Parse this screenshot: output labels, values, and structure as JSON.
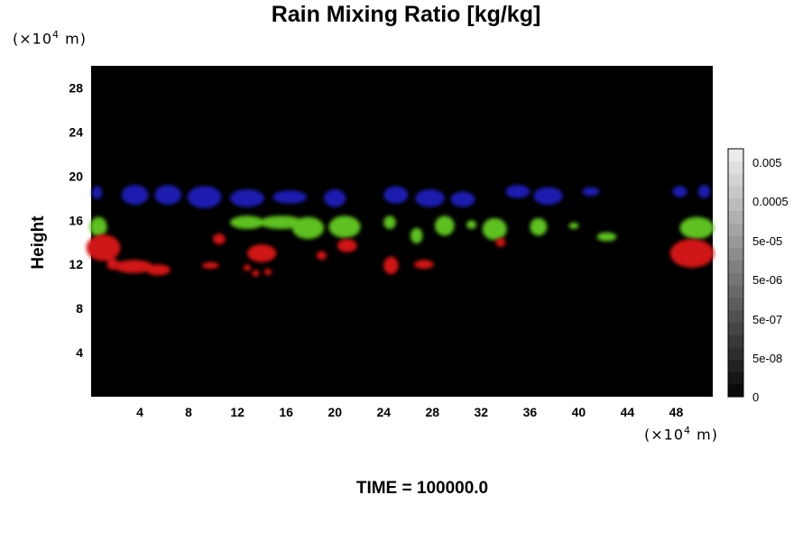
{
  "title": "Rain Mixing Ratio [kg/kg]",
  "y_unit": {
    "prefix": "(×10",
    "exp": "4",
    "suffix": " m)"
  },
  "x_unit": {
    "prefix": "(×10",
    "exp": "4",
    "suffix": " m)"
  },
  "ylabel": "Height",
  "time_label": "TIME = 100000.0",
  "colors": {
    "background": "#000000",
    "layer_high": "#1c1cb0",
    "layer_mid": "#5fc020",
    "layer_low": "#d01414"
  },
  "chart_data": {
    "type": "heatmap",
    "title": "Rain Mixing Ratio [kg/kg]",
    "ylabel": "Height",
    "xlim": [
      0,
      51
    ],
    "ylim": [
      0,
      30
    ],
    "x_ticks": [
      "4",
      "8",
      "12",
      "16",
      "20",
      "24",
      "28",
      "32",
      "36",
      "40",
      "44",
      "48"
    ],
    "y_ticks": [
      "4",
      "8",
      "12",
      "16",
      "20",
      "24",
      "28"
    ],
    "colorbar": {
      "ticks": [
        "0.005",
        "0.0005",
        "5e-05",
        "5e-06",
        "5e-07",
        "5e-08",
        "0"
      ],
      "levels": 20
    },
    "regions": [
      {
        "layer": "high",
        "color": "#1c1cb0",
        "patches": [
          {
            "x": 0.5,
            "y": 18.5,
            "rx": 0.4,
            "ry": 0.6
          },
          {
            "x": 3.6,
            "y": 18.3,
            "rx": 1.1,
            "ry": 0.9
          },
          {
            "x": 6.3,
            "y": 18.3,
            "rx": 1.1,
            "ry": 0.9
          },
          {
            "x": 9.3,
            "y": 18.1,
            "rx": 1.4,
            "ry": 1.0
          },
          {
            "x": 12.8,
            "y": 18.0,
            "rx": 1.4,
            "ry": 0.8
          },
          {
            "x": 16.3,
            "y": 18.1,
            "rx": 1.4,
            "ry": 0.6
          },
          {
            "x": 20.0,
            "y": 18.0,
            "rx": 0.9,
            "ry": 0.8
          },
          {
            "x": 25.0,
            "y": 18.3,
            "rx": 1.0,
            "ry": 0.8
          },
          {
            "x": 27.8,
            "y": 18.0,
            "rx": 1.2,
            "ry": 0.8
          },
          {
            "x": 30.5,
            "y": 17.9,
            "rx": 1.0,
            "ry": 0.7
          },
          {
            "x": 35.0,
            "y": 18.6,
            "rx": 1.0,
            "ry": 0.6
          },
          {
            "x": 37.5,
            "y": 18.2,
            "rx": 1.2,
            "ry": 0.8
          },
          {
            "x": 41.0,
            "y": 18.6,
            "rx": 0.7,
            "ry": 0.4
          },
          {
            "x": 48.3,
            "y": 18.6,
            "rx": 0.6,
            "ry": 0.5
          },
          {
            "x": 50.3,
            "y": 18.6,
            "rx": 0.5,
            "ry": 0.6
          }
        ]
      },
      {
        "layer": "mid",
        "color": "#5fc020",
        "patches": [
          {
            "x": 0.6,
            "y": 15.4,
            "rx": 0.7,
            "ry": 0.9
          },
          {
            "x": 12.8,
            "y": 15.8,
            "rx": 1.4,
            "ry": 0.6
          },
          {
            "x": 15.6,
            "y": 15.8,
            "rx": 1.8,
            "ry": 0.6
          },
          {
            "x": 17.8,
            "y": 15.3,
            "rx": 1.3,
            "ry": 1.0
          },
          {
            "x": 20.8,
            "y": 15.4,
            "rx": 1.3,
            "ry": 1.0
          },
          {
            "x": 24.5,
            "y": 15.8,
            "rx": 0.5,
            "ry": 0.6
          },
          {
            "x": 26.7,
            "y": 14.6,
            "rx": 0.5,
            "ry": 0.7
          },
          {
            "x": 29.0,
            "y": 15.5,
            "rx": 0.8,
            "ry": 0.9
          },
          {
            "x": 31.2,
            "y": 15.6,
            "rx": 0.4,
            "ry": 0.4
          },
          {
            "x": 33.1,
            "y": 15.2,
            "rx": 1.0,
            "ry": 1.0
          },
          {
            "x": 36.7,
            "y": 15.4,
            "rx": 0.7,
            "ry": 0.8
          },
          {
            "x": 39.6,
            "y": 15.5,
            "rx": 0.4,
            "ry": 0.3
          },
          {
            "x": 42.3,
            "y": 14.5,
            "rx": 0.8,
            "ry": 0.4
          },
          {
            "x": 49.7,
            "y": 15.3,
            "rx": 1.4,
            "ry": 1.0
          }
        ]
      },
      {
        "layer": "low",
        "color": "#d01414",
        "patches": [
          {
            "x": 1.0,
            "y": 13.5,
            "rx": 1.4,
            "ry": 1.2
          },
          {
            "x": 1.8,
            "y": 12.0,
            "rx": 0.5,
            "ry": 0.5
          },
          {
            "x": 3.5,
            "y": 11.8,
            "rx": 1.6,
            "ry": 0.6
          },
          {
            "x": 5.5,
            "y": 11.5,
            "rx": 1.0,
            "ry": 0.5
          },
          {
            "x": 10.5,
            "y": 14.3,
            "rx": 0.5,
            "ry": 0.5
          },
          {
            "x": 9.8,
            "y": 11.9,
            "rx": 0.7,
            "ry": 0.3
          },
          {
            "x": 14.0,
            "y": 13.0,
            "rx": 1.2,
            "ry": 0.8
          },
          {
            "x": 12.8,
            "y": 11.7,
            "rx": 0.3,
            "ry": 0.3
          },
          {
            "x": 13.5,
            "y": 11.2,
            "rx": 0.3,
            "ry": 0.3
          },
          {
            "x": 14.5,
            "y": 11.3,
            "rx": 0.3,
            "ry": 0.3
          },
          {
            "x": 18.9,
            "y": 12.8,
            "rx": 0.4,
            "ry": 0.4
          },
          {
            "x": 21.0,
            "y": 13.7,
            "rx": 0.8,
            "ry": 0.6
          },
          {
            "x": 24.6,
            "y": 11.9,
            "rx": 0.6,
            "ry": 0.8
          },
          {
            "x": 27.3,
            "y": 12.0,
            "rx": 0.8,
            "ry": 0.4
          },
          {
            "x": 33.6,
            "y": 14.0,
            "rx": 0.4,
            "ry": 0.4
          },
          {
            "x": 49.3,
            "y": 13.0,
            "rx": 1.8,
            "ry": 1.3
          }
        ]
      }
    ]
  }
}
